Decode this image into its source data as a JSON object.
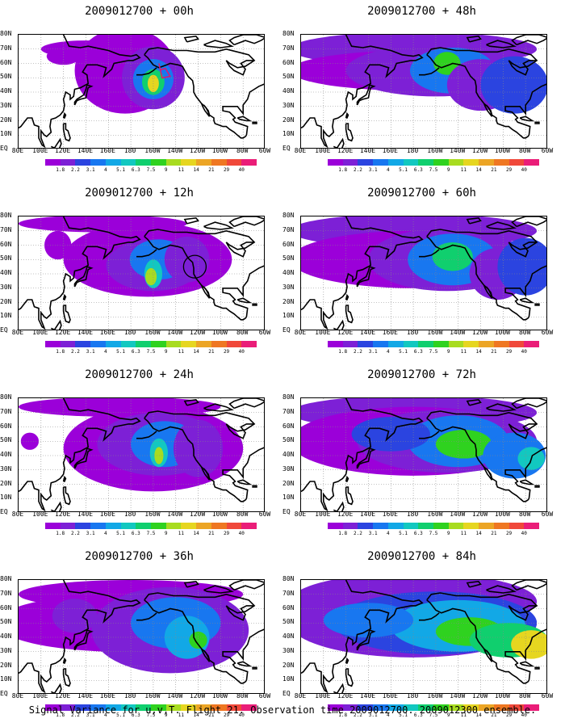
{
  "panels": [
    {
      "title": "2009012700 + 00h",
      "lead": 0
    },
    {
      "title": "2009012700 + 48h",
      "lead": 48
    },
    {
      "title": "2009012700 + 12h",
      "lead": 12
    },
    {
      "title": "2009012700 + 60h",
      "lead": 60
    },
    {
      "title": "2009012700 + 24h",
      "lead": 24
    },
    {
      "title": "2009012700 + 72h",
      "lead": 72
    },
    {
      "title": "2009012700 + 36h",
      "lead": 36
    },
    {
      "title": "2009012700 + 84h",
      "lead": 84
    }
  ],
  "lat_labels": [
    "80N",
    "70N",
    "60N",
    "50N",
    "40N",
    "30N",
    "20N",
    "10N",
    "EQ"
  ],
  "lon_labels": [
    "80E",
    "100E",
    "120E",
    "140E",
    "160E",
    "180",
    "160W",
    "140W",
    "120W",
    "100W",
    "80W",
    "60W"
  ],
  "colorbar": {
    "labels": [
      "1.8",
      "2.2",
      "3.1",
      "4",
      "5.1",
      "6.3",
      "7.5",
      "9",
      "11",
      "14",
      "21",
      "29",
      "40"
    ],
    "colors": [
      "#9b00d9",
      "#7d20d6",
      "#2b44e0",
      "#1877f0",
      "#12a8e6",
      "#12c8c0",
      "#10cf6e",
      "#2fd21f",
      "#a8dc20",
      "#e6d620",
      "#eca525",
      "#ef7722",
      "#f0483a",
      "#ea1d78"
    ]
  },
  "footer": "Signal Variance for u,v,T. Flight 21. Observation time 2009012700. 2009012300 ensemble."
}
